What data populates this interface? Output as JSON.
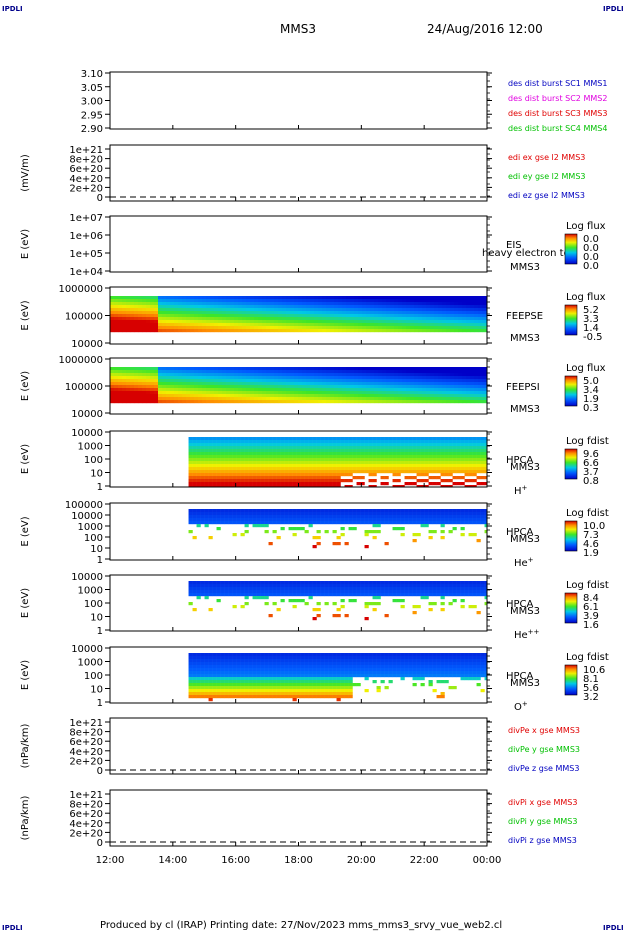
{
  "corner_label": "IPDLI",
  "header": {
    "spacecraft": "MMS3",
    "datetime": "24/Aug/2016 12:00"
  },
  "footer": "Produced by cl (IRAP)    Printing date: 27/Nov/2023    mms_mms3_srvy_vue_web2.cl",
  "colors": {
    "red": "#e00000",
    "green": "#00c000",
    "blue": "#0000c0",
    "magenta": "#e000e0"
  },
  "chart_data": [
    {
      "type": "line",
      "ylabel": "",
      "ticks": [
        "3.10",
        "3.05",
        "3.00",
        "2.95",
        "2.90"
      ],
      "legend": [
        {
          "text": "des dist burst SC1 MMS1",
          "color": "#0000c0"
        },
        {
          "text": "des dist burst SC2 MMS2",
          "color": "#e000e0"
        },
        {
          "text": "des dist burst SC3 MMS3",
          "color": "#e00000"
        },
        {
          "text": "des dist burst SC4 MMS4",
          "color": "#00c000"
        }
      ],
      "series": []
    },
    {
      "type": "line",
      "ylabel": "(mV/m)",
      "ticks": [
        "1e+21",
        "8e+20",
        "6e+20",
        "4e+20",
        "2e+20",
        "0"
      ],
      "zero_dashed": true,
      "legend": [
        {
          "text": "edi ex gse l2 MMS3",
          "color": "#e00000"
        },
        {
          "text": "edi ey gse l2 MMS3",
          "color": "#00c000"
        },
        {
          "text": "edi ez gse l2 MMS3",
          "color": "#0000c0"
        }
      ],
      "series": []
    },
    {
      "type": "heatmap",
      "ylabel": "E (eV)",
      "ticks": [
        "1e+07",
        "1e+06",
        "1e+05",
        "1e+04"
      ],
      "labels": [
        "EIS",
        "MMS3"
      ],
      "overlay": "heavy electron to",
      "colorbar_title": "Log flux",
      "colorbar_ticks": [
        "0.0",
        "0.0",
        "0.0",
        "0.0"
      ],
      "coverage": null
    },
    {
      "type": "heatmap",
      "ylabel": "E (eV)",
      "ticks": [
        "1000000",
        "100000",
        "10000"
      ],
      "labels": [
        "FEEPSE",
        "MMS3"
      ],
      "colorbar_title": "Log flux",
      "colorbar_ticks": [
        "5.2",
        "3.3",
        "1.4",
        "-0.5"
      ],
      "coverage": [
        12.0,
        24.0
      ]
    },
    {
      "type": "heatmap",
      "ylabel": "E (eV)",
      "ticks": [
        "1000000",
        "100000",
        "10000"
      ],
      "labels": [
        "FEEPSI",
        "MMS3"
      ],
      "colorbar_title": "Log flux",
      "colorbar_ticks": [
        "5.0",
        "3.4",
        "1.9",
        "0.3"
      ],
      "coverage": [
        12.0,
        24.0
      ]
    },
    {
      "type": "heatmap",
      "ylabel": "E (eV)",
      "ticks": [
        "10000",
        "1000",
        "100",
        "10",
        "1"
      ],
      "labels": [
        "HPCA",
        "MMS3"
      ],
      "species": "H",
      "species_sup": "+",
      "colorbar_title": "Log fdist",
      "colorbar_ticks": [
        "9.6",
        "6.6",
        "3.7",
        "0.8"
      ],
      "coverage": [
        14.5,
        24.0
      ]
    },
    {
      "type": "heatmap",
      "ylabel": "E (eV)",
      "ticks": [
        "100000",
        "10000",
        "1000",
        "100",
        "10",
        "1"
      ],
      "labels": [
        "HPCA",
        "MMS3"
      ],
      "species": "He",
      "species_sup": "+",
      "colorbar_title": "Log fdist",
      "colorbar_ticks": [
        "10.0",
        "7.3",
        "4.6",
        "1.9"
      ],
      "coverage": [
        14.5,
        24.0
      ]
    },
    {
      "type": "heatmap",
      "ylabel": "E (eV)",
      "ticks": [
        "10000",
        "1000",
        "100",
        "10",
        "1"
      ],
      "labels": [
        "HPCA",
        "MMS3"
      ],
      "species": "He",
      "species_sup": "++",
      "colorbar_title": "Log fdist",
      "colorbar_ticks": [
        "8.4",
        "6.1",
        "3.9",
        "1.6"
      ],
      "coverage": [
        14.5,
        24.0
      ]
    },
    {
      "type": "heatmap",
      "ylabel": "E (eV)",
      "ticks": [
        "10000",
        "1000",
        "100",
        "10",
        "1"
      ],
      "labels": [
        "HPCA",
        "MMS3"
      ],
      "species": "O",
      "species_sup": "+",
      "colorbar_title": "Log fdist",
      "colorbar_ticks": [
        "10.6",
        "8.1",
        "5.6",
        "3.2"
      ],
      "coverage": [
        14.5,
        24.0
      ]
    },
    {
      "type": "line",
      "ylabel": "(nPa/km)",
      "ticks": [
        "1e+21",
        "8e+20",
        "6e+20",
        "4e+20",
        "2e+20",
        "0"
      ],
      "zero_dashed": true,
      "legend": [
        {
          "text": "divPe x gse MMS3",
          "color": "#e00000"
        },
        {
          "text": "divPe y gse MMS3",
          "color": "#00c000"
        },
        {
          "text": "divPe z gse MMS3",
          "color": "#0000c0"
        }
      ],
      "series": []
    },
    {
      "type": "line",
      "ylabel": "(nPa/km)",
      "ticks": [
        "1e+21",
        "8e+20",
        "6e+20",
        "4e+20",
        "2e+20",
        "0"
      ],
      "zero_dashed": true,
      "legend": [
        {
          "text": "divPi x gse MMS3",
          "color": "#e00000"
        },
        {
          "text": "divPi y gse MMS3",
          "color": "#00c000"
        },
        {
          "text": "divPi z gse MMS3",
          "color": "#0000c0"
        }
      ],
      "series": []
    }
  ],
  "time_axis": {
    "range": [
      12,
      24
    ],
    "ticks": [
      "12:00",
      "14:00",
      "16:00",
      "18:00",
      "20:00",
      "22:00",
      "00:00"
    ]
  }
}
